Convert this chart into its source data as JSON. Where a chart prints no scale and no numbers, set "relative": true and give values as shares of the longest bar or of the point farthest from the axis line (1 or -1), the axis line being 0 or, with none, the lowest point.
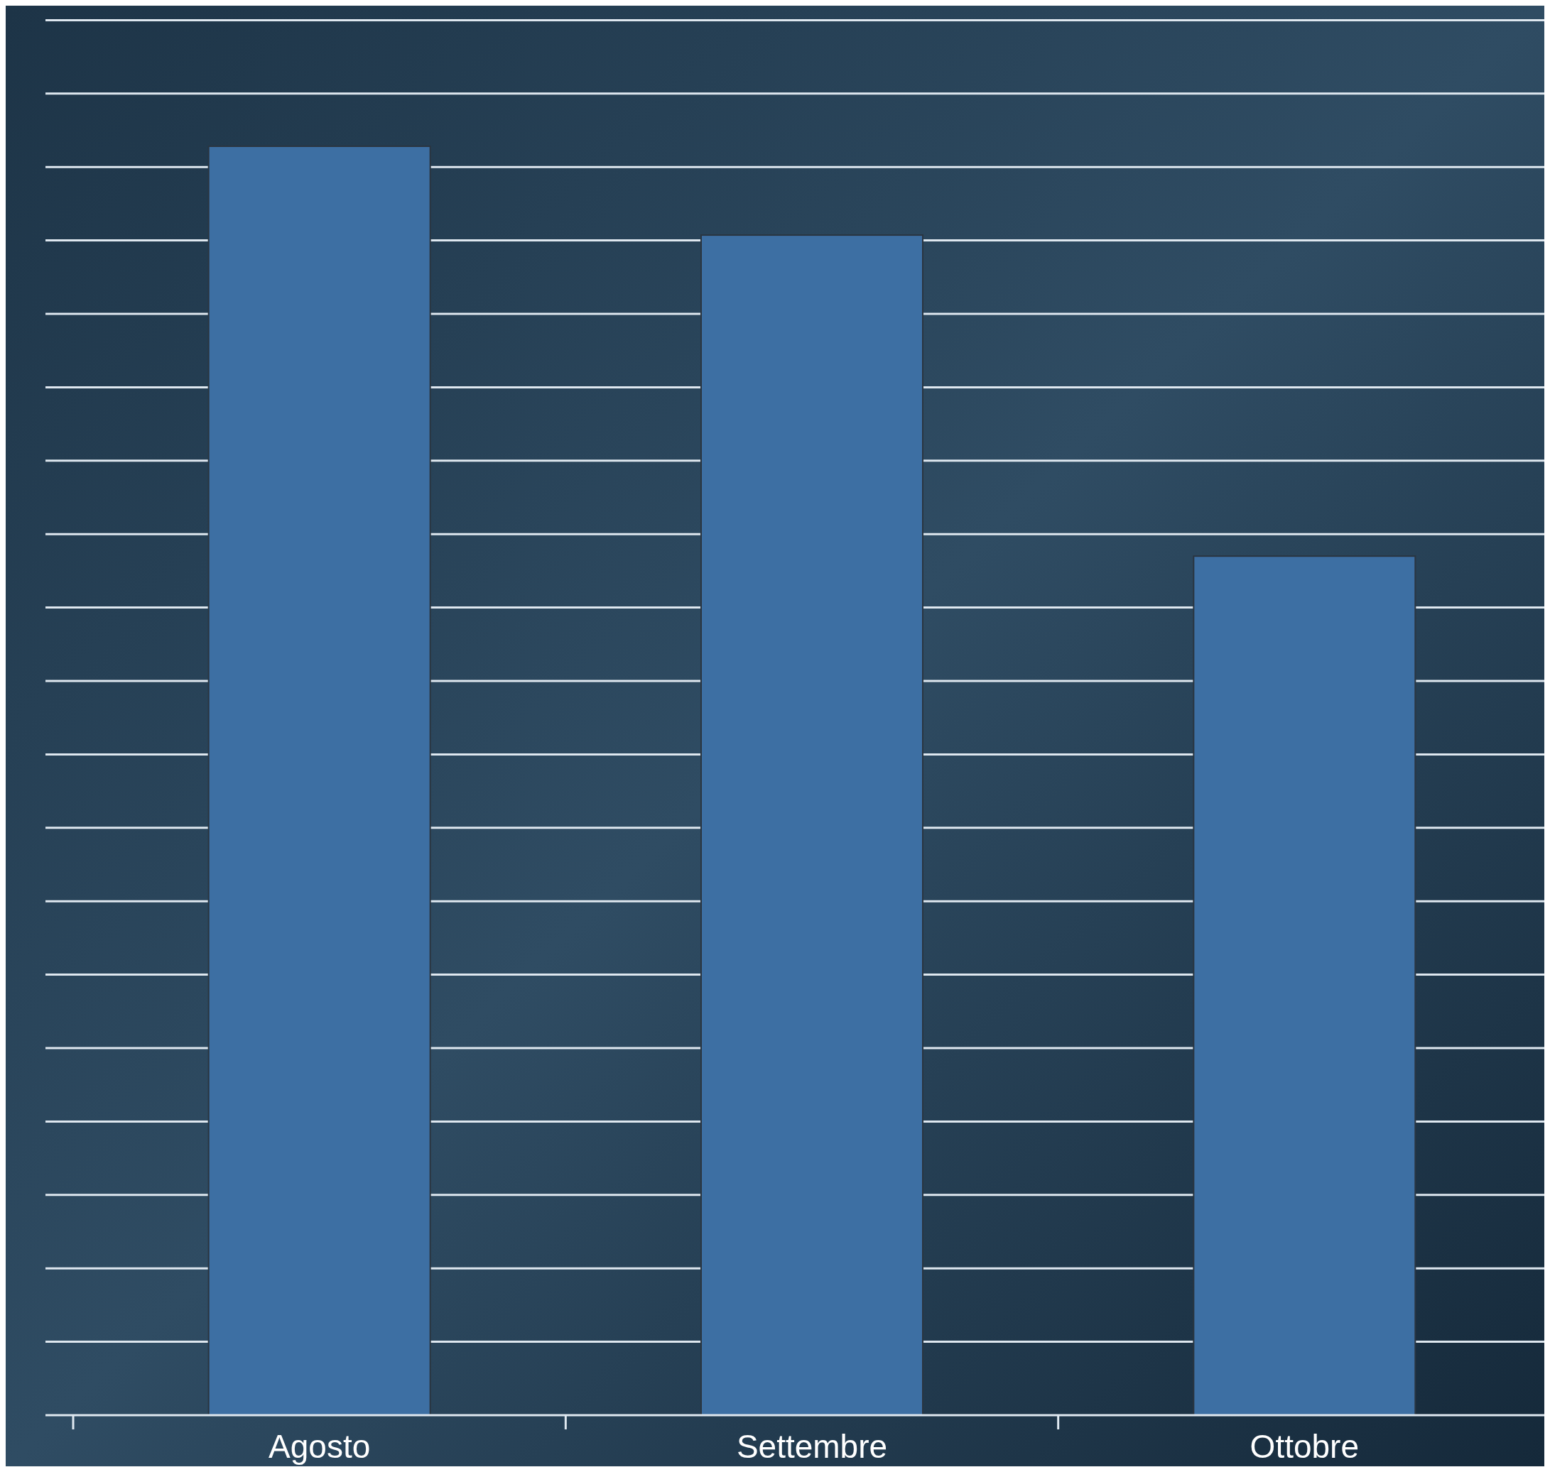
{
  "chart_data": {
    "type": "bar",
    "relative": true,
    "categories": [
      "Agosto",
      "Settembre",
      "Ottobre"
    ],
    "values": [
      1,
      0.93,
      0.677
    ],
    "color": "#3d6fa3",
    "grid": true
  }
}
